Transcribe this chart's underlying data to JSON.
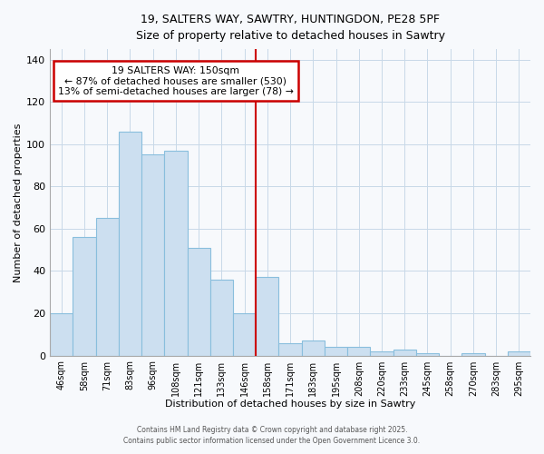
{
  "title_line1": "19, SALTERS WAY, SAWTRY, HUNTINGDON, PE28 5PF",
  "title_line2": "Size of property relative to detached houses in Sawtry",
  "xlabel": "Distribution of detached houses by size in Sawtry",
  "ylabel": "Number of detached properties",
  "bar_labels": [
    "46sqm",
    "58sqm",
    "71sqm",
    "83sqm",
    "96sqm",
    "108sqm",
    "121sqm",
    "133sqm",
    "146sqm",
    "158sqm",
    "171sqm",
    "183sqm",
    "195sqm",
    "208sqm",
    "220sqm",
    "233sqm",
    "245sqm",
    "258sqm",
    "270sqm",
    "283sqm",
    "295sqm"
  ],
  "bar_values": [
    20,
    56,
    65,
    106,
    95,
    97,
    51,
    36,
    20,
    37,
    6,
    7,
    4,
    4,
    2,
    3,
    1,
    0,
    1,
    0,
    2
  ],
  "bar_color": "#ccdff0",
  "bar_edge_color": "#89bedd",
  "vline_x_index": 8,
  "vline_color": "#cc0000",
  "annotation_title": "19 SALTERS WAY: 150sqm",
  "annotation_line1": "← 87% of detached houses are smaller (530)",
  "annotation_line2": "13% of semi-detached houses are larger (78) →",
  "annotation_box_edgecolor": "#cc0000",
  "annotation_text_color": "black",
  "annotation_fill_color": "white",
  "ylim": [
    0,
    145
  ],
  "yticks": [
    0,
    20,
    40,
    60,
    80,
    100,
    120,
    140
  ],
  "footer_line1": "Contains HM Land Registry data © Crown copyright and database right 2025.",
  "footer_line2": "Contains public sector information licensed under the Open Government Licence 3.0.",
  "background_color": "#f7f9fc",
  "grid_color": "#c8d8e8",
  "plot_bg_color": "#f7f9fc"
}
